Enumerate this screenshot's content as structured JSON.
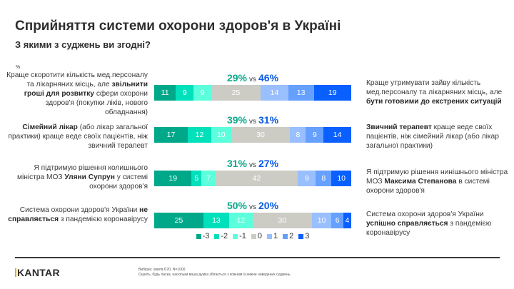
{
  "header": {
    "title": "Сприйняття системи охорони здоров'я в Україні",
    "subtitle": "З якими з суджень ви згодні?",
    "unit": "%"
  },
  "colors": {
    "-3": "#00a88a",
    "-2": "#00e0bb",
    "-1": "#5cffdb",
    "0": "#ccccc4",
    "1": "#99bfff",
    "2": "#66a0ff",
    "3": "#0a60ff",
    "neg_total": "#0aa88b",
    "pos_total": "#0a5ae6"
  },
  "chart_data": {
    "type": "bar",
    "orientation": "horizontal-stacked-diverging",
    "title": "Сприйняття системи охорони здоров'я в Україні",
    "subtitle": "З якими з суджень ви згодні?",
    "unit": "%",
    "legend_position": "bottom",
    "series_labels": [
      "-3",
      "-2",
      "-1",
      "0",
      "1",
      "2",
      "3"
    ],
    "rows": [
      {
        "left_statement_parts": [
          {
            "text": "Краще скоротити кількість мед.персоналу та лікарняних місць, але ",
            "bold": false
          },
          {
            "text": "звільнити гроші для розвитку",
            "bold": true
          },
          {
            "text": " сфери охорони здоров'я (покупки ліків, нового обладнання)",
            "bold": false
          }
        ],
        "right_statement_parts": [
          {
            "text": "Краще утримувати зайву кількість мед.персоналу та лікарняних місць, але ",
            "bold": false
          },
          {
            "text": "бути готовими до екстрених ситуацій",
            "bold": true
          }
        ],
        "neg_total": "29%",
        "vs": "vs",
        "pos_total": "46%",
        "values": [
          11,
          9,
          9,
          25,
          14,
          13,
          19
        ]
      },
      {
        "left_statement_parts": [
          {
            "text": "Сімейний лікар",
            "bold": true
          },
          {
            "text": " (або лікар загальної практики) краще веде своїх пацієнтів, ніж звичний терапевт",
            "bold": false
          }
        ],
        "right_statement_parts": [
          {
            "text": "Звичний терапевт",
            "bold": true
          },
          {
            "text": " краще веде своїх пацієнтів, ніж сімейний лікар (або лікар загальної практики)",
            "bold": false
          }
        ],
        "neg_total": "39%",
        "vs": "vs",
        "pos_total": "31%",
        "values": [
          17,
          12,
          10,
          30,
          8,
          9,
          14
        ]
      },
      {
        "left_statement_parts": [
          {
            "text": "Я підтримую рішення колишнього міністра МОЗ ",
            "bold": false
          },
          {
            "text": "Уляни Супрун",
            "bold": true
          },
          {
            "text": " у системі охорони здоров'я",
            "bold": false
          }
        ],
        "right_statement_parts": [
          {
            "text": "Я підтримую рішення нинішнього міністра МОЗ ",
            "bold": false
          },
          {
            "text": "Максима Степанова",
            "bold": true
          },
          {
            "text": " в системі охорони здоров'я",
            "bold": false
          }
        ],
        "neg_total": "31%",
        "vs": "vs",
        "pos_total": "27%",
        "values": [
          19,
          5,
          7,
          42,
          9,
          8,
          10
        ]
      },
      {
        "left_statement_parts": [
          {
            "text": "Система охорони здоров'я України ",
            "bold": false
          },
          {
            "text": "не справляється",
            "bold": true
          },
          {
            "text": " з пандемією коронавірусу",
            "bold": false
          }
        ],
        "right_statement_parts": [
          {
            "text": "Система охорони здоров'я України ",
            "bold": false
          },
          {
            "text": "успішно справляється",
            "bold": true
          },
          {
            "text": " з пандемією коронавірусу",
            "bold": false
          }
        ],
        "neg_total": "50%",
        "vs": "vs",
        "pos_total": "20%",
        "values": [
          25,
          13,
          12,
          30,
          10,
          6,
          4
        ]
      }
    ]
  },
  "footer": {
    "logo": "KANTAR",
    "sample_note": "Вибірка: хвиля 6'20, N=1000",
    "question_note": "Оцініть, будь ласка, наскільки ваша думка збігається з кожним із нижче наведених суджень."
  }
}
